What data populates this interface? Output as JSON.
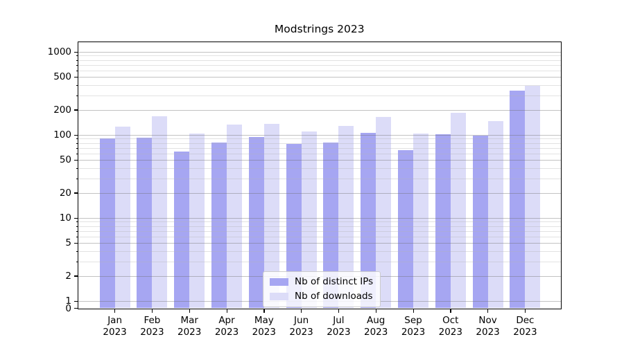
{
  "figure": {
    "title": "Modstrings 2023",
    "background_color": "#ffffff",
    "spine_color": "#000000"
  },
  "chart_data": {
    "type": "bar",
    "title": "Modstrings 2023",
    "xlabel": "",
    "ylabel": "",
    "yscale": "symlog",
    "ylim": [
      0,
      1300
    ],
    "yticks": [
      0,
      1,
      2,
      5,
      10,
      20,
      50,
      100,
      200,
      500,
      1000
    ],
    "minor_gridline_values": [
      3,
      4,
      6,
      7,
      8,
      9,
      30,
      40,
      60,
      70,
      80,
      90,
      300,
      400,
      600,
      700,
      800,
      900
    ],
    "grid": true,
    "legend_position": "lower center",
    "categories": [
      "Jan 2023",
      "Feb 2023",
      "Mar 2023",
      "Apr 2023",
      "May 2023",
      "Jun 2023",
      "Jul 2023",
      "Aug 2023",
      "Sep 2023",
      "Oct 2023",
      "Nov 2023",
      "Dec 2023"
    ],
    "series": [
      {
        "name": "Nb of distinct IPs",
        "color": "#a6a6f2",
        "values": [
          90,
          92,
          63,
          81,
          95,
          78,
          81,
          106,
          66,
          101,
          98,
          344
        ]
      },
      {
        "name": "Nb of downloads",
        "color": "#dcdcf8",
        "values": [
          126,
          167,
          104,
          133,
          135,
          110,
          128,
          165,
          103,
          186,
          147,
          390
        ]
      }
    ]
  }
}
